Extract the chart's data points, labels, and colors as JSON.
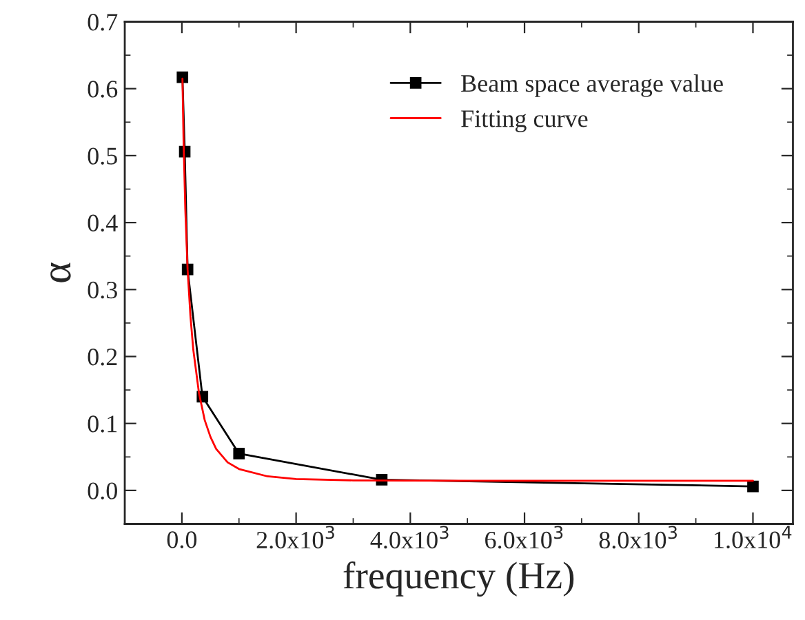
{
  "chart_data": {
    "type": "line",
    "xlabel": "frequency (Hz)",
    "ylabel": "α",
    "series": [
      {
        "name": "Beam space average value",
        "color": "#000000",
        "marker": "square",
        "x": [
          10,
          50,
          100,
          360,
          1000,
          3500,
          10000
        ],
        "values": [
          0.617,
          0.506,
          0.33,
          0.14,
          0.055,
          0.016,
          0.006
        ]
      },
      {
        "name": "Fitting curve",
        "color": "#ff0000",
        "marker": "none",
        "x": [
          10,
          30,
          60,
          100,
          150,
          200,
          300,
          400,
          500,
          600,
          800,
          1000,
          1500,
          2000,
          3000,
          5000,
          10000
        ],
        "values": [
          0.615,
          0.52,
          0.42,
          0.33,
          0.26,
          0.21,
          0.145,
          0.105,
          0.08,
          0.062,
          0.042,
          0.032,
          0.021,
          0.017,
          0.015,
          0.0145,
          0.0145
        ]
      }
    ],
    "xlim": [
      -1000,
      10700
    ],
    "ylim": [
      -0.05,
      0.7
    ],
    "xticks": [
      {
        "value": 0,
        "label": "0.0"
      },
      {
        "value": 2000,
        "label": "2.0x10$^{3}$"
      },
      {
        "value": 4000,
        "label": "4.0x10$^{3}$"
      },
      {
        "value": 6000,
        "label": "6.0x10$^{3}$"
      },
      {
        "value": 8000,
        "label": "8.0x10$^{3}$"
      },
      {
        "value": 10000,
        "label": "1.0x10$^{4}$"
      }
    ],
    "yticks": [
      {
        "value": 0,
        "label": "0.0"
      },
      0.1,
      0.2,
      0.3,
      0.4,
      0.5,
      0.6,
      0.7
    ],
    "legend": "top right",
    "grid": false
  }
}
